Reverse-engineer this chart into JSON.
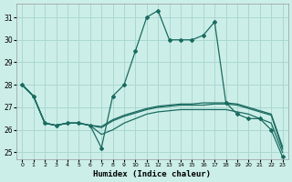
{
  "x": [
    0,
    1,
    2,
    3,
    4,
    5,
    6,
    7,
    8,
    9,
    10,
    11,
    12,
    13,
    14,
    15,
    16,
    17,
    18,
    19,
    20,
    21,
    22,
    23
  ],
  "line_main": [
    28,
    27.5,
    26.3,
    26.2,
    26.3,
    26.3,
    26.2,
    25.2,
    27.5,
    28.0,
    29.5,
    31.0,
    31.3,
    30.0,
    30.0,
    30.0,
    30.2,
    30.8,
    27.2,
    26.7,
    26.5,
    26.5,
    26.0,
    24.8
  ],
  "line_a": [
    28,
    27.5,
    26.3,
    26.2,
    26.3,
    26.3,
    26.2,
    25.8,
    26.0,
    26.3,
    26.5,
    26.7,
    26.8,
    26.85,
    26.9,
    26.9,
    26.9,
    26.9,
    26.9,
    26.8,
    26.7,
    26.5,
    26.3,
    25.0
  ],
  "line_b": [
    28,
    27.5,
    26.3,
    26.2,
    26.3,
    26.3,
    26.2,
    26.1,
    26.4,
    26.6,
    26.75,
    26.9,
    27.0,
    27.05,
    27.1,
    27.1,
    27.1,
    27.15,
    27.15,
    27.1,
    26.95,
    26.8,
    26.65,
    25.15
  ],
  "line_c": [
    28,
    27.5,
    26.3,
    26.2,
    26.3,
    26.3,
    26.2,
    26.15,
    26.45,
    26.65,
    26.8,
    26.95,
    27.05,
    27.1,
    27.15,
    27.15,
    27.2,
    27.2,
    27.2,
    27.15,
    27.0,
    26.85,
    26.7,
    25.25
  ],
  "bg_color": "#cceee8",
  "grid_color": "#aad8d0",
  "line_color": "#1a6b60",
  "xlabel": "Humidex (Indice chaleur)",
  "yticks": [
    25,
    26,
    27,
    28,
    29,
    30,
    31
  ],
  "ylim": [
    24.7,
    31.6
  ],
  "xlim": [
    -0.5,
    23.5
  ],
  "marker_style": "D",
  "marker_size": 2.0,
  "linewidth": 0.9
}
